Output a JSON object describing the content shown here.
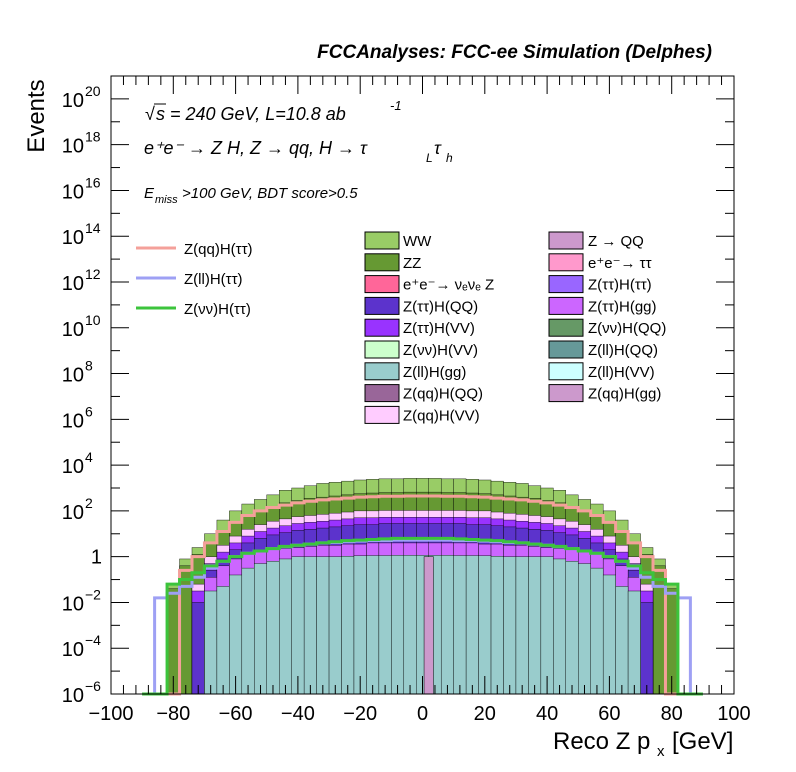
{
  "chart_data": {
    "type": "histogram-stacked-log",
    "title": "FCCAnalyses: FCC-ee Simulation (Delphes)",
    "xlabel": "Reco Z p",
    "xlabel_sub": "x",
    "xlabel_unit": "[GeV]",
    "ylabel": "Events",
    "xlim": [
      -100,
      100
    ],
    "ylim_log10": [
      -6,
      21
    ],
    "x_ticks": [
      "−100",
      "−80",
      "−60",
      "−40",
      "−20",
      "0",
      "20",
      "40",
      "60",
      "80",
      "100"
    ],
    "y_ticks": [
      {
        "base": "10",
        "exp": "−6",
        "log": -6
      },
      {
        "base": "10",
        "exp": "−4",
        "log": -4
      },
      {
        "base": "10",
        "exp": "−2",
        "log": -2
      },
      {
        "base": "1",
        "exp": "",
        "log": 0
      },
      {
        "base": "10",
        "exp": "2",
        "log": 2
      },
      {
        "base": "10",
        "exp": "4",
        "log": 4
      },
      {
        "base": "10",
        "exp": "6",
        "log": 6
      },
      {
        "base": "10",
        "exp": "8",
        "log": 8
      },
      {
        "base": "10",
        "exp": "10",
        "log": 10
      },
      {
        "base": "10",
        "exp": "12",
        "log": 12
      },
      {
        "base": "10",
        "exp": "14",
        "log": 14
      },
      {
        "base": "10",
        "exp": "16",
        "log": 16
      },
      {
        "base": "10",
        "exp": "18",
        "log": 18
      },
      {
        "base": "10",
        "exp": "20",
        "log": 20
      }
    ],
    "annotations": {
      "line1": "s = 240 GeV, L=10.8 ab",
      "line1_sqrt": "√",
      "line1_exp": "-1",
      "line2": "e⁺e⁻ → Z H, Z → qq, H → τ",
      "line2_sub1": "L",
      "line2_tail": "τ",
      "line2_sub2": "h",
      "line3_E": "E",
      "line3_sub": "miss",
      "line3_rest": ">100 GeV, BDT score>0.5"
    },
    "signal_legend": [
      {
        "name": "Z(qq)H(ττ)",
        "color": "#f4a09a"
      },
      {
        "name": "Z(ll)H(ττ)",
        "color": "#9ea0f4"
      },
      {
        "name": "Z(νν)H(ττ)",
        "color": "#3cc43c"
      }
    ],
    "background_legend_col1": [
      {
        "name": "WW",
        "color": "#99cc66"
      },
      {
        "name": "ZZ",
        "color": "#669933"
      },
      {
        "name": "e⁺e⁻→ νₑνₑ Z",
        "color": "#ff6699"
      },
      {
        "name": "Z(ττ)H(QQ)",
        "color": "#5c33cc"
      },
      {
        "name": "Z(ττ)H(VV)",
        "color": "#9933ff"
      },
      {
        "name": "Z(νν)H(VV)",
        "color": "#ccffcc"
      },
      {
        "name": "Z(ll)H(gg)",
        "color": "#99cccc"
      },
      {
        "name": "Z(qq)H(QQ)",
        "color": "#996699"
      },
      {
        "name": "Z(qq)H(VV)",
        "color": "#ffccff"
      }
    ],
    "background_legend_col2": [
      {
        "name": "Z → QQ",
        "color": "#cc99cc"
      },
      {
        "name": "e⁺e⁻→ ττ",
        "color": "#ff99cc"
      },
      {
        "name": "Z(ττ)H(ττ)",
        "color": "#9966ff"
      },
      {
        "name": "Z(ττ)H(gg)",
        "color": "#cc66ff"
      },
      {
        "name": "Z(νν)H(QQ)",
        "color": "#669966"
      },
      {
        "name": "Z(ll)H(QQ)",
        "color": "#669999"
      },
      {
        "name": "Z(ll)H(VV)",
        "color": "#ccffff"
      },
      {
        "name": "Z(qq)H(gg)",
        "color": "#cc99cc"
      }
    ],
    "bin_centers": [
      -88,
      -84,
      -80,
      -76,
      -72,
      -68,
      -64,
      -60,
      -56,
      -52,
      -48,
      -44,
      -40,
      -36,
      -32,
      -28,
      -24,
      -20,
      -16,
      -12,
      -8,
      -4,
      0,
      4,
      8,
      12,
      16,
      20,
      24,
      28,
      32,
      36,
      40,
      44,
      48,
      52,
      56,
      60,
      64,
      68,
      72,
      76,
      80,
      84,
      88
    ],
    "stack_top_log": [
      -6,
      -6,
      -1.2,
      -0.1,
      0.4,
      1.0,
      1.6,
      2.0,
      2.3,
      2.5,
      2.7,
      2.9,
      3.0,
      3.1,
      3.2,
      3.25,
      3.3,
      3.35,
      3.38,
      3.4,
      3.4,
      3.42,
      3.42,
      3.42,
      3.4,
      3.4,
      3.38,
      3.35,
      3.3,
      3.25,
      3.2,
      3.1,
      3.0,
      2.9,
      2.7,
      2.5,
      2.3,
      2.0,
      1.6,
      1.0,
      0.4,
      -0.1,
      -1.2,
      -6,
      -6
    ],
    "layers_log": [
      {
        "name": "Z(ll)H(gg)",
        "color": "#99cccc",
        "values": [
          -6,
          -6,
          -6,
          -6,
          -6,
          -1.5,
          -1.3,
          -0.8,
          -0.5,
          -0.3,
          -0.2,
          -0.1,
          0,
          0,
          0,
          0,
          0.02,
          0.04,
          0.05,
          0.05,
          0.06,
          0.06,
          0.06,
          0.06,
          0.06,
          0.05,
          0.05,
          0.04,
          0.02,
          0,
          0,
          0,
          0,
          -0.1,
          -0.2,
          -0.3,
          -0.5,
          -0.8,
          -1.3,
          -1.5,
          -6,
          -6,
          -6,
          -6,
          -6
        ]
      },
      {
        "name": "Z(ττ)H(gg)",
        "color": "#cc66ff",
        "values": [
          -6,
          -6,
          -6,
          -6,
          -6,
          -0.9,
          -0.4,
          -0.1,
          0.1,
          0.2,
          0.3,
          0.35,
          0.4,
          0.45,
          0.5,
          0.5,
          0.55,
          0.55,
          0.6,
          0.6,
          0.6,
          0.6,
          0.6,
          0.6,
          0.6,
          0.6,
          0.6,
          0.55,
          0.55,
          0.5,
          0.5,
          0.45,
          0.4,
          0.35,
          0.3,
          0.2,
          0.1,
          -0.1,
          -0.4,
          -0.9,
          -6,
          -6,
          -6,
          -6,
          -6
        ]
      },
      {
        "name": "Z(ττ)H(QQ)",
        "color": "#5c33cc",
        "values": [
          -6,
          -6,
          -6,
          -6,
          -2,
          -0.6,
          -0.1,
          0.3,
          0.6,
          0.8,
          0.95,
          1.05,
          1.15,
          1.2,
          1.25,
          1.3,
          1.35,
          1.4,
          1.4,
          1.45,
          1.45,
          1.45,
          1.45,
          1.45,
          1.45,
          1.45,
          1.4,
          1.4,
          1.35,
          1.3,
          1.25,
          1.2,
          1.15,
          1.05,
          0.95,
          0.8,
          0.6,
          0.3,
          -0.1,
          -0.6,
          -2,
          -6,
          -6,
          -6,
          -6
        ]
      },
      {
        "name": "Z(ττ)H(VV)",
        "color": "#9933ff",
        "values": [
          -6,
          -6,
          -6,
          -6,
          -1.5,
          -0.3,
          0.2,
          0.6,
          0.9,
          1.1,
          1.25,
          1.35,
          1.45,
          1.5,
          1.55,
          1.6,
          1.65,
          1.7,
          1.7,
          1.72,
          1.72,
          1.72,
          1.72,
          1.72,
          1.72,
          1.72,
          1.7,
          1.7,
          1.65,
          1.6,
          1.55,
          1.5,
          1.45,
          1.35,
          1.25,
          1.1,
          0.9,
          0.6,
          0.2,
          -0.3,
          -1.5,
          -6,
          -6,
          -6,
          -6
        ]
      },
      {
        "name": "Z(qq)H(VV)",
        "color": "#ffccff",
        "values": [
          -6,
          -6,
          -6,
          -6,
          -1.2,
          0,
          0.5,
          0.9,
          1.2,
          1.4,
          1.55,
          1.65,
          1.75,
          1.8,
          1.85,
          1.9,
          1.95,
          2.0,
          2.0,
          2.02,
          2.02,
          2.02,
          2.02,
          2.02,
          2.02,
          2.02,
          2.0,
          2.0,
          1.95,
          1.9,
          1.85,
          1.8,
          1.75,
          1.65,
          1.55,
          1.4,
          1.2,
          0.9,
          0.5,
          0,
          -1.2,
          -6,
          -6,
          -6,
          -6
        ]
      },
      {
        "name": "ZZ",
        "color": "#669933",
        "values": [
          -6,
          -6,
          -1.4,
          -0.4,
          0.1,
          0.6,
          1.1,
          1.5,
          1.8,
          2.0,
          2.2,
          2.35,
          2.45,
          2.55,
          2.6,
          2.65,
          2.7,
          2.75,
          2.78,
          2.8,
          2.8,
          2.82,
          2.82,
          2.82,
          2.8,
          2.8,
          2.78,
          2.75,
          2.7,
          2.65,
          2.6,
          2.55,
          2.45,
          2.35,
          2.2,
          2.0,
          1.8,
          1.5,
          1.1,
          0.6,
          0.1,
          -0.4,
          -1.4,
          -6,
          -6
        ]
      },
      {
        "name": "WW",
        "color": "#99cc66",
        "values": [
          -6,
          -6,
          -1.2,
          -0.1,
          0.4,
          1.0,
          1.6,
          2.0,
          2.3,
          2.5,
          2.7,
          2.9,
          3.0,
          3.1,
          3.2,
          3.25,
          3.3,
          3.35,
          3.38,
          3.4,
          3.4,
          3.42,
          3.42,
          3.42,
          3.4,
          3.4,
          3.38,
          3.35,
          3.3,
          3.25,
          3.2,
          3.1,
          3.0,
          2.9,
          2.7,
          2.5,
          2.3,
          2.0,
          1.6,
          1.0,
          0.4,
          -0.1,
          -1.2,
          -6,
          -6
        ]
      }
    ],
    "spike": {
      "name": "Z → QQ",
      "x": 2,
      "log": 0.0
    },
    "signal_lines_log": [
      {
        "name": "Z(qq)H(ττ)",
        "color": "#f4a09a",
        "values": [
          -6,
          -6,
          -6,
          -0.6,
          0,
          0.6,
          1.1,
          1.5,
          1.8,
          2.0,
          2.15,
          2.25,
          2.35,
          2.42,
          2.48,
          2.52,
          2.56,
          2.6,
          2.62,
          2.64,
          2.64,
          2.65,
          2.65,
          2.65,
          2.64,
          2.64,
          2.62,
          2.6,
          2.56,
          2.52,
          2.48,
          2.42,
          2.35,
          2.25,
          2.15,
          2.0,
          1.8,
          1.5,
          1.1,
          0.6,
          0,
          -0.6,
          -6,
          -6,
          -6
        ]
      },
      {
        "name": "Z(ll)H(ττ)",
        "color": "#9ea0f4",
        "values": [
          -6,
          -1.8,
          -1.6,
          -1.3,
          -0.9,
          -0.5,
          -0.2,
          0,
          0.15,
          0.25,
          0.35,
          0.42,
          0.5,
          0.55,
          0.6,
          0.62,
          0.65,
          0.68,
          0.7,
          0.7,
          0.72,
          0.72,
          0.72,
          0.72,
          0.72,
          0.7,
          0.7,
          0.68,
          0.65,
          0.62,
          0.6,
          0.55,
          0.5,
          0.42,
          0.35,
          0.25,
          0.15,
          0,
          -0.2,
          -0.5,
          -0.9,
          -1.3,
          -1.6,
          -1.8,
          -6
        ]
      },
      {
        "name": "Z(νν)H(ττ)",
        "color": "#3cc43c",
        "values": [
          -6,
          -6,
          -1.2,
          -1.0,
          -0.7,
          -0.4,
          -0.2,
          0,
          0.15,
          0.25,
          0.35,
          0.45,
          0.5,
          0.55,
          0.6,
          0.65,
          0.7,
          0.72,
          0.75,
          0.78,
          0.8,
          0.8,
          0.8,
          0.8,
          0.8,
          0.78,
          0.75,
          0.72,
          0.7,
          0.65,
          0.6,
          0.55,
          0.5,
          0.45,
          0.35,
          0.25,
          0.15,
          0,
          -0.2,
          -0.4,
          -0.7,
          -1.0,
          -1.2,
          -6,
          -6
        ]
      }
    ]
  }
}
